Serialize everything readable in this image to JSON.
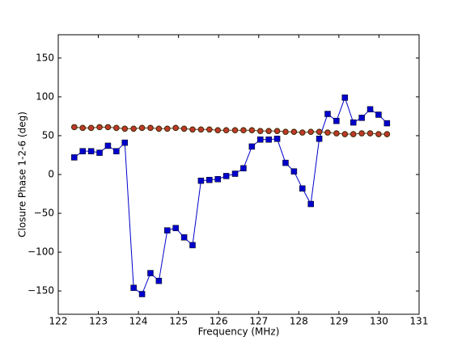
{
  "chart_data": {
    "type": "line",
    "xlabel": "Frequency (MHz)",
    "ylabel": "Closure Phase 1-2-6 (deg)",
    "x": [
      122.4,
      122.61,
      122.82,
      123.03,
      123.24,
      123.45,
      123.66,
      123.88,
      124.09,
      124.3,
      124.51,
      124.72,
      124.93,
      125.14,
      125.35,
      125.56,
      125.77,
      125.98,
      126.19,
      126.41,
      126.62,
      126.83,
      127.04,
      127.25,
      127.46,
      127.67,
      127.88,
      128.09,
      128.3,
      128.51,
      128.72,
      128.94,
      129.15,
      129.36,
      129.57,
      129.78,
      129.99,
      130.2
    ],
    "series": [
      {
        "color": "#0000cc",
        "marker": "square",
        "values": [
          22,
          30,
          30,
          28,
          37,
          30,
          41,
          -146,
          -154,
          -127,
          -137,
          -72,
          -69,
          -81,
          -91,
          -8,
          -7,
          -6,
          -2,
          1,
          8,
          36,
          45,
          45,
          46,
          15,
          4,
          -18,
          -38,
          46,
          78,
          69,
          99,
          67,
          73,
          84,
          77,
          66
        ]
      },
      {
        "color": "#c0392b",
        "marker": "circle",
        "values": [
          61,
          60,
          60,
          61,
          61,
          60,
          59,
          59,
          60,
          60,
          59,
          59,
          60,
          59,
          58,
          58,
          58,
          57,
          57,
          57,
          57,
          57,
          56,
          56,
          56,
          55,
          55,
          54,
          55,
          55,
          54,
          53,
          52,
          52,
          53,
          53,
          52,
          52
        ]
      }
    ],
    "xlim": [
      122,
      131
    ],
    "xticks": [
      122,
      123,
      124,
      125,
      126,
      127,
      128,
      129,
      130,
      131
    ],
    "ylim": [
      -180,
      180
    ],
    "yticks": [
      {
        "value": -150,
        "label": "−150"
      },
      {
        "value": -100,
        "label": "−100"
      },
      {
        "value": -50,
        "label": "−50"
      },
      0,
      50,
      100,
      150
    ],
    "grid": false
  }
}
